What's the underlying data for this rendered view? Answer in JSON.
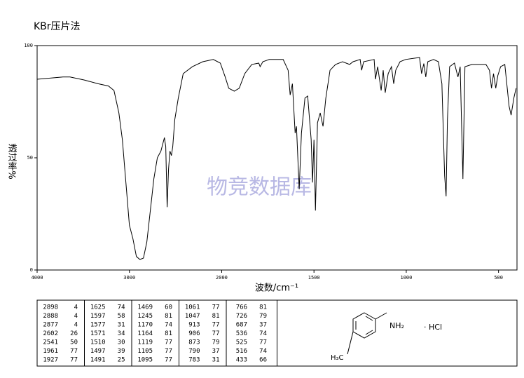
{
  "chart_data": {
    "type": "line",
    "title": "KBr压片法",
    "xlabel": "波数/cm⁻¹",
    "ylabel": "透过率%",
    "watermark": "物竞数据库",
    "xlim": [
      4000,
      400
    ],
    "xticks": [
      4000,
      3000,
      2000,
      1500,
      1000,
      500
    ],
    "ylim": [
      0,
      100
    ],
    "yticks": [
      0,
      50,
      100
    ],
    "series": [
      {
        "color": "#000000",
        "x": [
          4000,
          3720,
          3644,
          3492,
          3340,
          3227,
          3167,
          3114,
          3076,
          3038,
          3000,
          2962,
          2924,
          2886,
          2848,
          2811,
          2773,
          2735,
          2697,
          2659,
          2621,
          2606,
          2591,
          2576,
          2561,
          2545,
          2530,
          2508,
          2470,
          2417,
          2318,
          2205,
          2091,
          2015,
          1981,
          1962,
          1932,
          1905,
          1875,
          1837,
          1799,
          1792,
          1777,
          1742,
          1667,
          1640,
          1629,
          1617,
          1602,
          1595,
          1580,
          1568,
          1549,
          1534,
          1515,
          1508,
          1500,
          1492,
          1481,
          1466,
          1451,
          1436,
          1413,
          1383,
          1345,
          1307,
          1288,
          1250,
          1242,
          1231,
          1174,
          1167,
          1155,
          1136,
          1125,
          1114,
          1098,
          1080,
          1068,
          1057,
          1034,
          1004,
          928,
          917,
          905,
          894,
          883,
          852,
          826,
          807,
          792,
          784,
          777,
          765,
          739,
          720,
          708,
          693,
          682,
          644,
          568,
          549,
          538,
          527,
          515,
          504,
          489,
          466,
          443,
          432,
          417,
          405
        ],
        "values": [
          85,
          86,
          86,
          84.7,
          83,
          82,
          80,
          70,
          58,
          39,
          20,
          14,
          6,
          4.7,
          5.3,
          12.5,
          26.5,
          40.6,
          50,
          53,
          59,
          55,
          28,
          45,
          53,
          51,
          55,
          67,
          76.6,
          87.5,
          90.6,
          92.8,
          93.8,
          92.2,
          86,
          81,
          79.7,
          81,
          87.5,
          91.6,
          92.2,
          90.6,
          92.8,
          93.8,
          93.8,
          89,
          78,
          83,
          61,
          64,
          36,
          61,
          76.6,
          77.5,
          58,
          39,
          58,
          26.5,
          65.6,
          70,
          64,
          76.6,
          89,
          91.6,
          92.8,
          91.6,
          92.8,
          93.8,
          89,
          92.8,
          93.8,
          85,
          90.6,
          80,
          89,
          79,
          87.5,
          90.6,
          83,
          89,
          92.8,
          93.8,
          94.7,
          87.5,
          92,
          86,
          92.8,
          93.8,
          92.8,
          83,
          42,
          32.8,
          67,
          90.6,
          92.2,
          86,
          90.6,
          40.6,
          90.6,
          91.6,
          91.6,
          89,
          81,
          87.5,
          81,
          86.6,
          90.6,
          91.6,
          73,
          69,
          76.6,
          81
        ]
      }
    ]
  },
  "peak_table": [
    [
      [
        2898,
        4
      ],
      [
        2888,
        4
      ],
      [
        2877,
        4
      ],
      [
        2602,
        26
      ],
      [
        2541,
        50
      ],
      [
        1961,
        77
      ],
      [
        1927,
        77
      ]
    ],
    [
      [
        1625,
        74
      ],
      [
        1597,
        58
      ],
      [
        1577,
        31
      ],
      [
        1571,
        34
      ],
      [
        1510,
        30
      ],
      [
        1497,
        39
      ],
      [
        1491,
        25
      ]
    ],
    [
      [
        1469,
        60
      ],
      [
        1245,
        81
      ],
      [
        1170,
        74
      ],
      [
        1164,
        81
      ],
      [
        1119,
        77
      ],
      [
        1105,
        77
      ],
      [
        1095,
        77
      ]
    ],
    [
      [
        1061,
        77
      ],
      [
        1047,
        81
      ],
      [
        913,
        77
      ],
      [
        906,
        77
      ],
      [
        873,
        79
      ],
      [
        790,
        37
      ],
      [
        783,
        31
      ]
    ],
    [
      [
        766,
        81
      ],
      [
        726,
        79
      ],
      [
        687,
        37
      ],
      [
        536,
        74
      ],
      [
        525,
        77
      ],
      [
        516,
        74
      ],
      [
        433,
        66
      ]
    ]
  ],
  "structure": {
    "amine": "NH₂",
    "salt": "· HCl",
    "methyl": "H₃C"
  }
}
